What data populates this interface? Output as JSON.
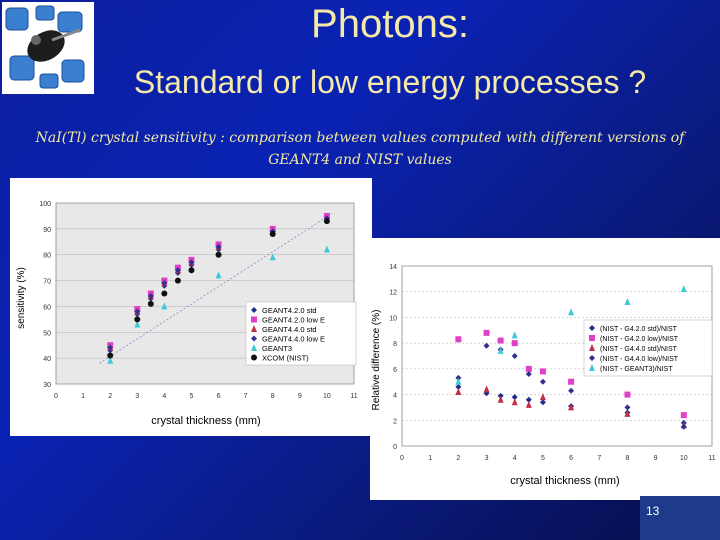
{
  "slide": {
    "title": "Photons:",
    "subtitle": "Standard or low energy processes ?",
    "caption": "NaI(Tl) crystal sensitivity : comparison between values computed with different versions of GEANT4 and NIST values",
    "page_number": "13"
  },
  "colors": {
    "title": "#f4e9a8",
    "background": "#0a22b4",
    "s1": "#1f2f8c",
    "s2": "#e040c8",
    "s3": "#c0304a",
    "s4": "#303090",
    "s5": "#40c8d8",
    "s6": "#101010",
    "t1": "#1f2f8c",
    "t2": "#e040c8",
    "t3": "#c0304a",
    "t4": "#303090",
    "t5": "#40c8d8"
  },
  "chart_data": [
    {
      "type": "scatter",
      "title": "",
      "xlabel": "crystal thickness (mm)",
      "ylabel": "sensitivity (%)",
      "xlim": [
        0,
        11
      ],
      "ylim": [
        30,
        100
      ],
      "xticks": [
        "0",
        "1",
        "2",
        "3",
        "4",
        "5",
        "6",
        "7",
        "8",
        "9",
        "10",
        "11"
      ],
      "yticks": [
        "30",
        "40",
        "50",
        "60",
        "70",
        "80",
        "90",
        "100"
      ],
      "grid": true,
      "legend_position": "bottom-right",
      "series": [
        {
          "name": "GEANT4.2.0 std",
          "marker": "diamond",
          "color": "#1f2f8c",
          "x": [
            2,
            3,
            3.5,
            4,
            4.5,
            5,
            6,
            8,
            10
          ],
          "y": [
            43,
            57,
            63,
            68,
            73,
            76,
            82,
            89,
            93
          ]
        },
        {
          "name": "GEANT4.2.0 low E",
          "marker": "square",
          "color": "#e040c8",
          "x": [
            2,
            3,
            3.5,
            4,
            4.5,
            5,
            6,
            8,
            10
          ],
          "y": [
            45,
            59,
            65,
            70,
            75,
            78,
            84,
            90,
            95
          ]
        },
        {
          "name": "GEANT4.4.0 std",
          "marker": "triangle",
          "color": "#c0304a",
          "x": [
            2,
            3,
            3.5,
            4,
            4.5,
            5,
            6,
            8,
            10
          ],
          "y": [
            44,
            58,
            64,
            69,
            74,
            77,
            83,
            89,
            94
          ]
        },
        {
          "name": "GEANT4.4.0 low E",
          "marker": "diamond",
          "color": "#303090",
          "x": [
            2,
            3,
            3.5,
            4,
            4.5,
            5,
            6,
            8,
            10
          ],
          "y": [
            44,
            58,
            64,
            69,
            74,
            77,
            83,
            89,
            94
          ]
        },
        {
          "name": "GEANT3",
          "marker": "triangle",
          "color": "#40c8d8",
          "x": [
            2,
            3,
            4,
            6,
            8,
            10
          ],
          "y": [
            39,
            53,
            60,
            72,
            79,
            82
          ]
        },
        {
          "name": "XCOM (NIST)",
          "marker": "circle",
          "color": "#101010",
          "x": [
            2,
            3,
            3.5,
            4,
            4.5,
            5,
            6,
            8,
            10
          ],
          "y": [
            41,
            55,
            61,
            65,
            70,
            74,
            80,
            88,
            93
          ]
        }
      ]
    },
    {
      "type": "scatter",
      "title": "",
      "xlabel": "crystal thickness (mm)",
      "ylabel": "Relative difference (%)",
      "xlim": [
        0,
        11
      ],
      "ylim": [
        0,
        14
      ],
      "xticks": [
        "0",
        "1",
        "2",
        "3",
        "4",
        "5",
        "6",
        "7",
        "8",
        "9",
        "10",
        "11"
      ],
      "yticks": [
        "0",
        "2",
        "4",
        "6",
        "8",
        "10",
        "12",
        "14"
      ],
      "grid": true,
      "legend_position": "right",
      "series": [
        {
          "name": "(NIST - G4.2.0 std)/NIST",
          "marker": "diamond",
          "color": "#1f2f8c",
          "x": [
            2,
            3,
            3.5,
            4,
            4.5,
            5,
            6,
            8,
            10
          ],
          "y": [
            4.6,
            4.1,
            3.9,
            3.8,
            3.6,
            3.4,
            3.1,
            2.6,
            1.8
          ]
        },
        {
          "name": "(NIST - G4.2.0 low)/NIST",
          "marker": "square",
          "color": "#e040c8",
          "x": [
            2,
            3,
            3.5,
            4,
            4.5,
            5,
            6,
            8,
            10
          ],
          "y": [
            8.3,
            8.8,
            8.2,
            8.0,
            6.0,
            5.8,
            5.0,
            4.0,
            2.4
          ]
        },
        {
          "name": "(NIST - G4.4.0 std)/NIST",
          "marker": "triangle",
          "color": "#c0304a",
          "x": [
            2,
            3,
            3.5,
            4,
            4.5,
            5,
            6,
            8,
            10
          ],
          "y": [
            4.2,
            4.4,
            3.6,
            3.4,
            3.2,
            3.8,
            3.0,
            2.5,
            1.6
          ]
        },
        {
          "name": "(NIST - G4.4.0 low)/NIST",
          "marker": "diamond",
          "color": "#303090",
          "x": [
            2,
            3,
            3.5,
            4,
            4.5,
            5,
            6,
            8,
            10
          ],
          "y": [
            5.3,
            7.8,
            7.5,
            7.0,
            5.6,
            5.0,
            4.3,
            3.0,
            1.5
          ]
        },
        {
          "name": "(NIST - GEANT3)/NIST",
          "marker": "triangle",
          "color": "#40c8d8",
          "x": [
            2,
            3.5,
            4,
            6,
            8,
            10
          ],
          "y": [
            5.0,
            7.4,
            8.6,
            10.4,
            11.2,
            12.2
          ]
        }
      ]
    }
  ]
}
